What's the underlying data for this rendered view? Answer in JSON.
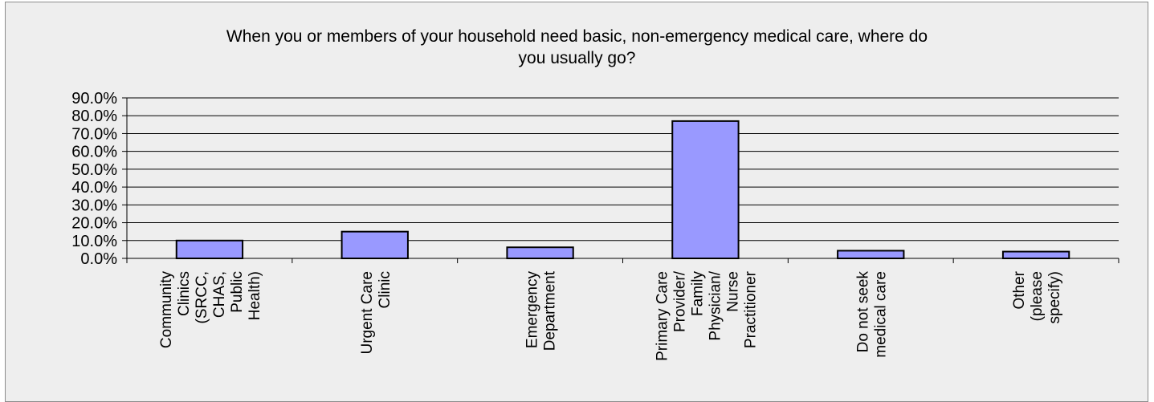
{
  "chart_data": {
    "type": "bar",
    "title_line1": "When you or members of your household need basic, non-emergency medical care, where do",
    "title_line2": "you usually go?",
    "categories": [
      [
        "Community",
        "Clinics",
        "(SRCC,",
        "CHAS,",
        "Public",
        "Health)"
      ],
      [
        "Urgent Care",
        "Clinic"
      ],
      [
        "Emergency",
        "Department"
      ],
      [
        "Primary Care",
        "Provider/",
        "Family",
        "Physician/",
        "Nurse",
        "Practitioner"
      ],
      [
        "Do not seek",
        "medical care"
      ],
      [
        "Other",
        "(please",
        "specify)"
      ]
    ],
    "values": [
      10.0,
      15.0,
      6.2,
      77.0,
      4.3,
      3.8
    ],
    "ylim": [
      0,
      90
    ],
    "y_ticks": [
      "0.0%",
      "10.0%",
      "20.0%",
      "30.0%",
      "40.0%",
      "50.0%",
      "60.0%",
      "70.0%",
      "80.0%",
      "90.0%"
    ],
    "grid": true,
    "bar_color": "#9999ff",
    "bar_border": "#000000"
  }
}
